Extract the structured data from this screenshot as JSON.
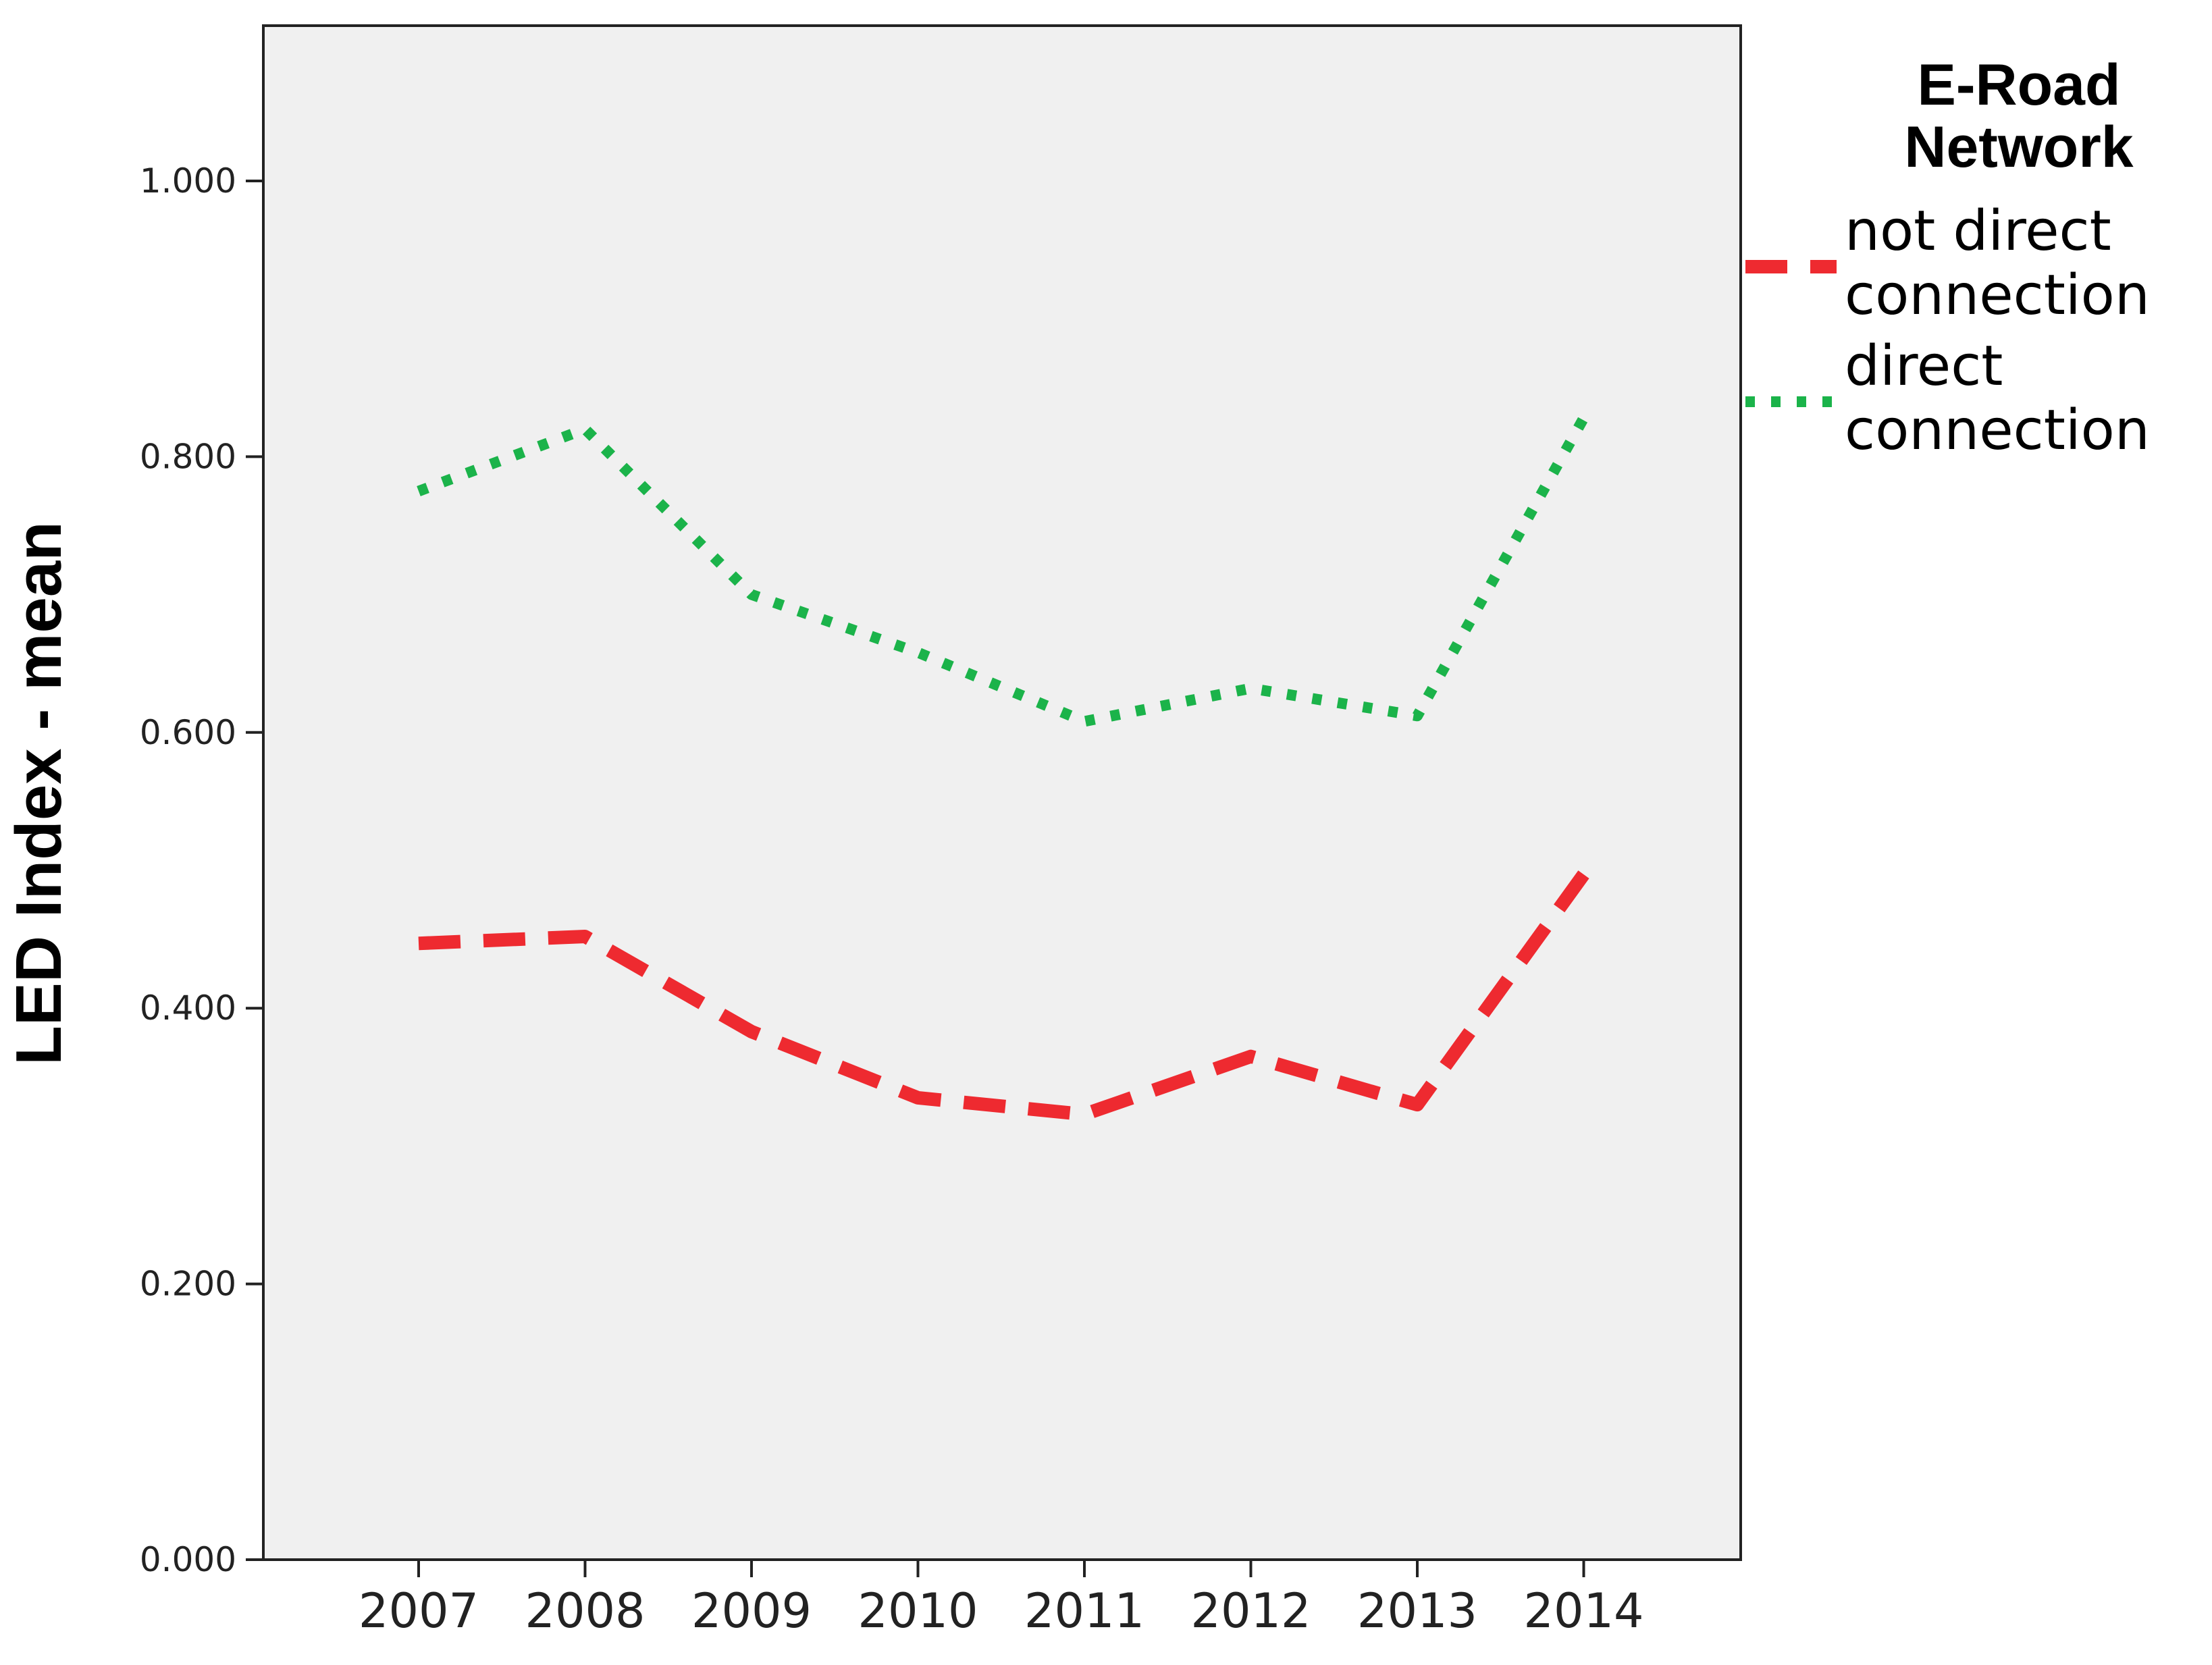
{
  "colors": {
    "plot_background": "#f0f0f0",
    "not_direct": "#ee2a30",
    "direct": "#1bb34a",
    "axis": "#222222"
  },
  "chart_data": {
    "type": "line",
    "title": "",
    "xlabel": "",
    "ylabel": "LED Index - mean",
    "categories": [
      "2007",
      "2008",
      "2009",
      "2010",
      "2011",
      "2012",
      "2013",
      "2014"
    ],
    "ylim": [
      0,
      1.1
    ],
    "yticks": [
      0,
      0.2,
      0.4,
      0.6,
      0.8,
      1.0
    ],
    "ytick_labels": [
      "0.000",
      "0.200",
      "0.400",
      "0.600",
      "0.800",
      "1.000"
    ],
    "grid": false,
    "legend_title_lines": [
      "E-Road",
      "Network"
    ],
    "legend_placement": "right",
    "series": [
      {
        "key": "not_direct",
        "name_lines": [
          "not direct",
          "connection"
        ],
        "style": "dashed",
        "color": "#ee2a30",
        "values": [
          0.447,
          0.452,
          0.383,
          0.335,
          0.323,
          0.365,
          0.33,
          0.497
        ]
      },
      {
        "key": "direct",
        "name_lines": [
          "direct",
          "connection"
        ],
        "style": "dotted",
        "color": "#1bb34a",
        "values": [
          0.775,
          0.82,
          0.7,
          0.658,
          0.608,
          0.632,
          0.612,
          0.828
        ]
      }
    ]
  }
}
